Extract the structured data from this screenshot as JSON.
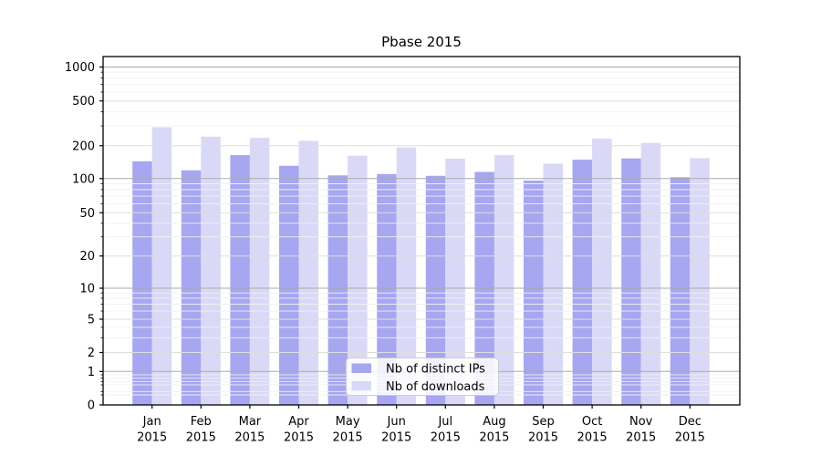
{
  "title": "Pbase 2015",
  "chart_data": {
    "type": "bar",
    "title": "Pbase 2015",
    "categories": [
      "Jan",
      "Feb",
      "Mar",
      "Apr",
      "May",
      "Jun",
      "Jul",
      "Aug",
      "Sep",
      "Oct",
      "Nov",
      "Dec"
    ],
    "category_year": "2015",
    "series": [
      {
        "name": "Nb of distinct IPs",
        "color": "#a6a6f1",
        "values": [
          144,
          119,
          164,
          131,
          107,
          110,
          106,
          115,
          96,
          149,
          153,
          103
        ]
      },
      {
        "name": "Nb of downloads",
        "color": "#d9d9f7",
        "values": [
          292,
          241,
          235,
          221,
          162,
          193,
          152,
          164,
          137,
          232,
          212,
          154
        ]
      }
    ],
    "yscale": "symlog",
    "yticks": [
      0,
      1,
      2,
      5,
      10,
      20,
      50,
      100,
      200,
      500,
      1000
    ],
    "ylim": [
      0,
      1300
    ],
    "grid": "major-and-minor",
    "legend_position": "lower center inside"
  }
}
